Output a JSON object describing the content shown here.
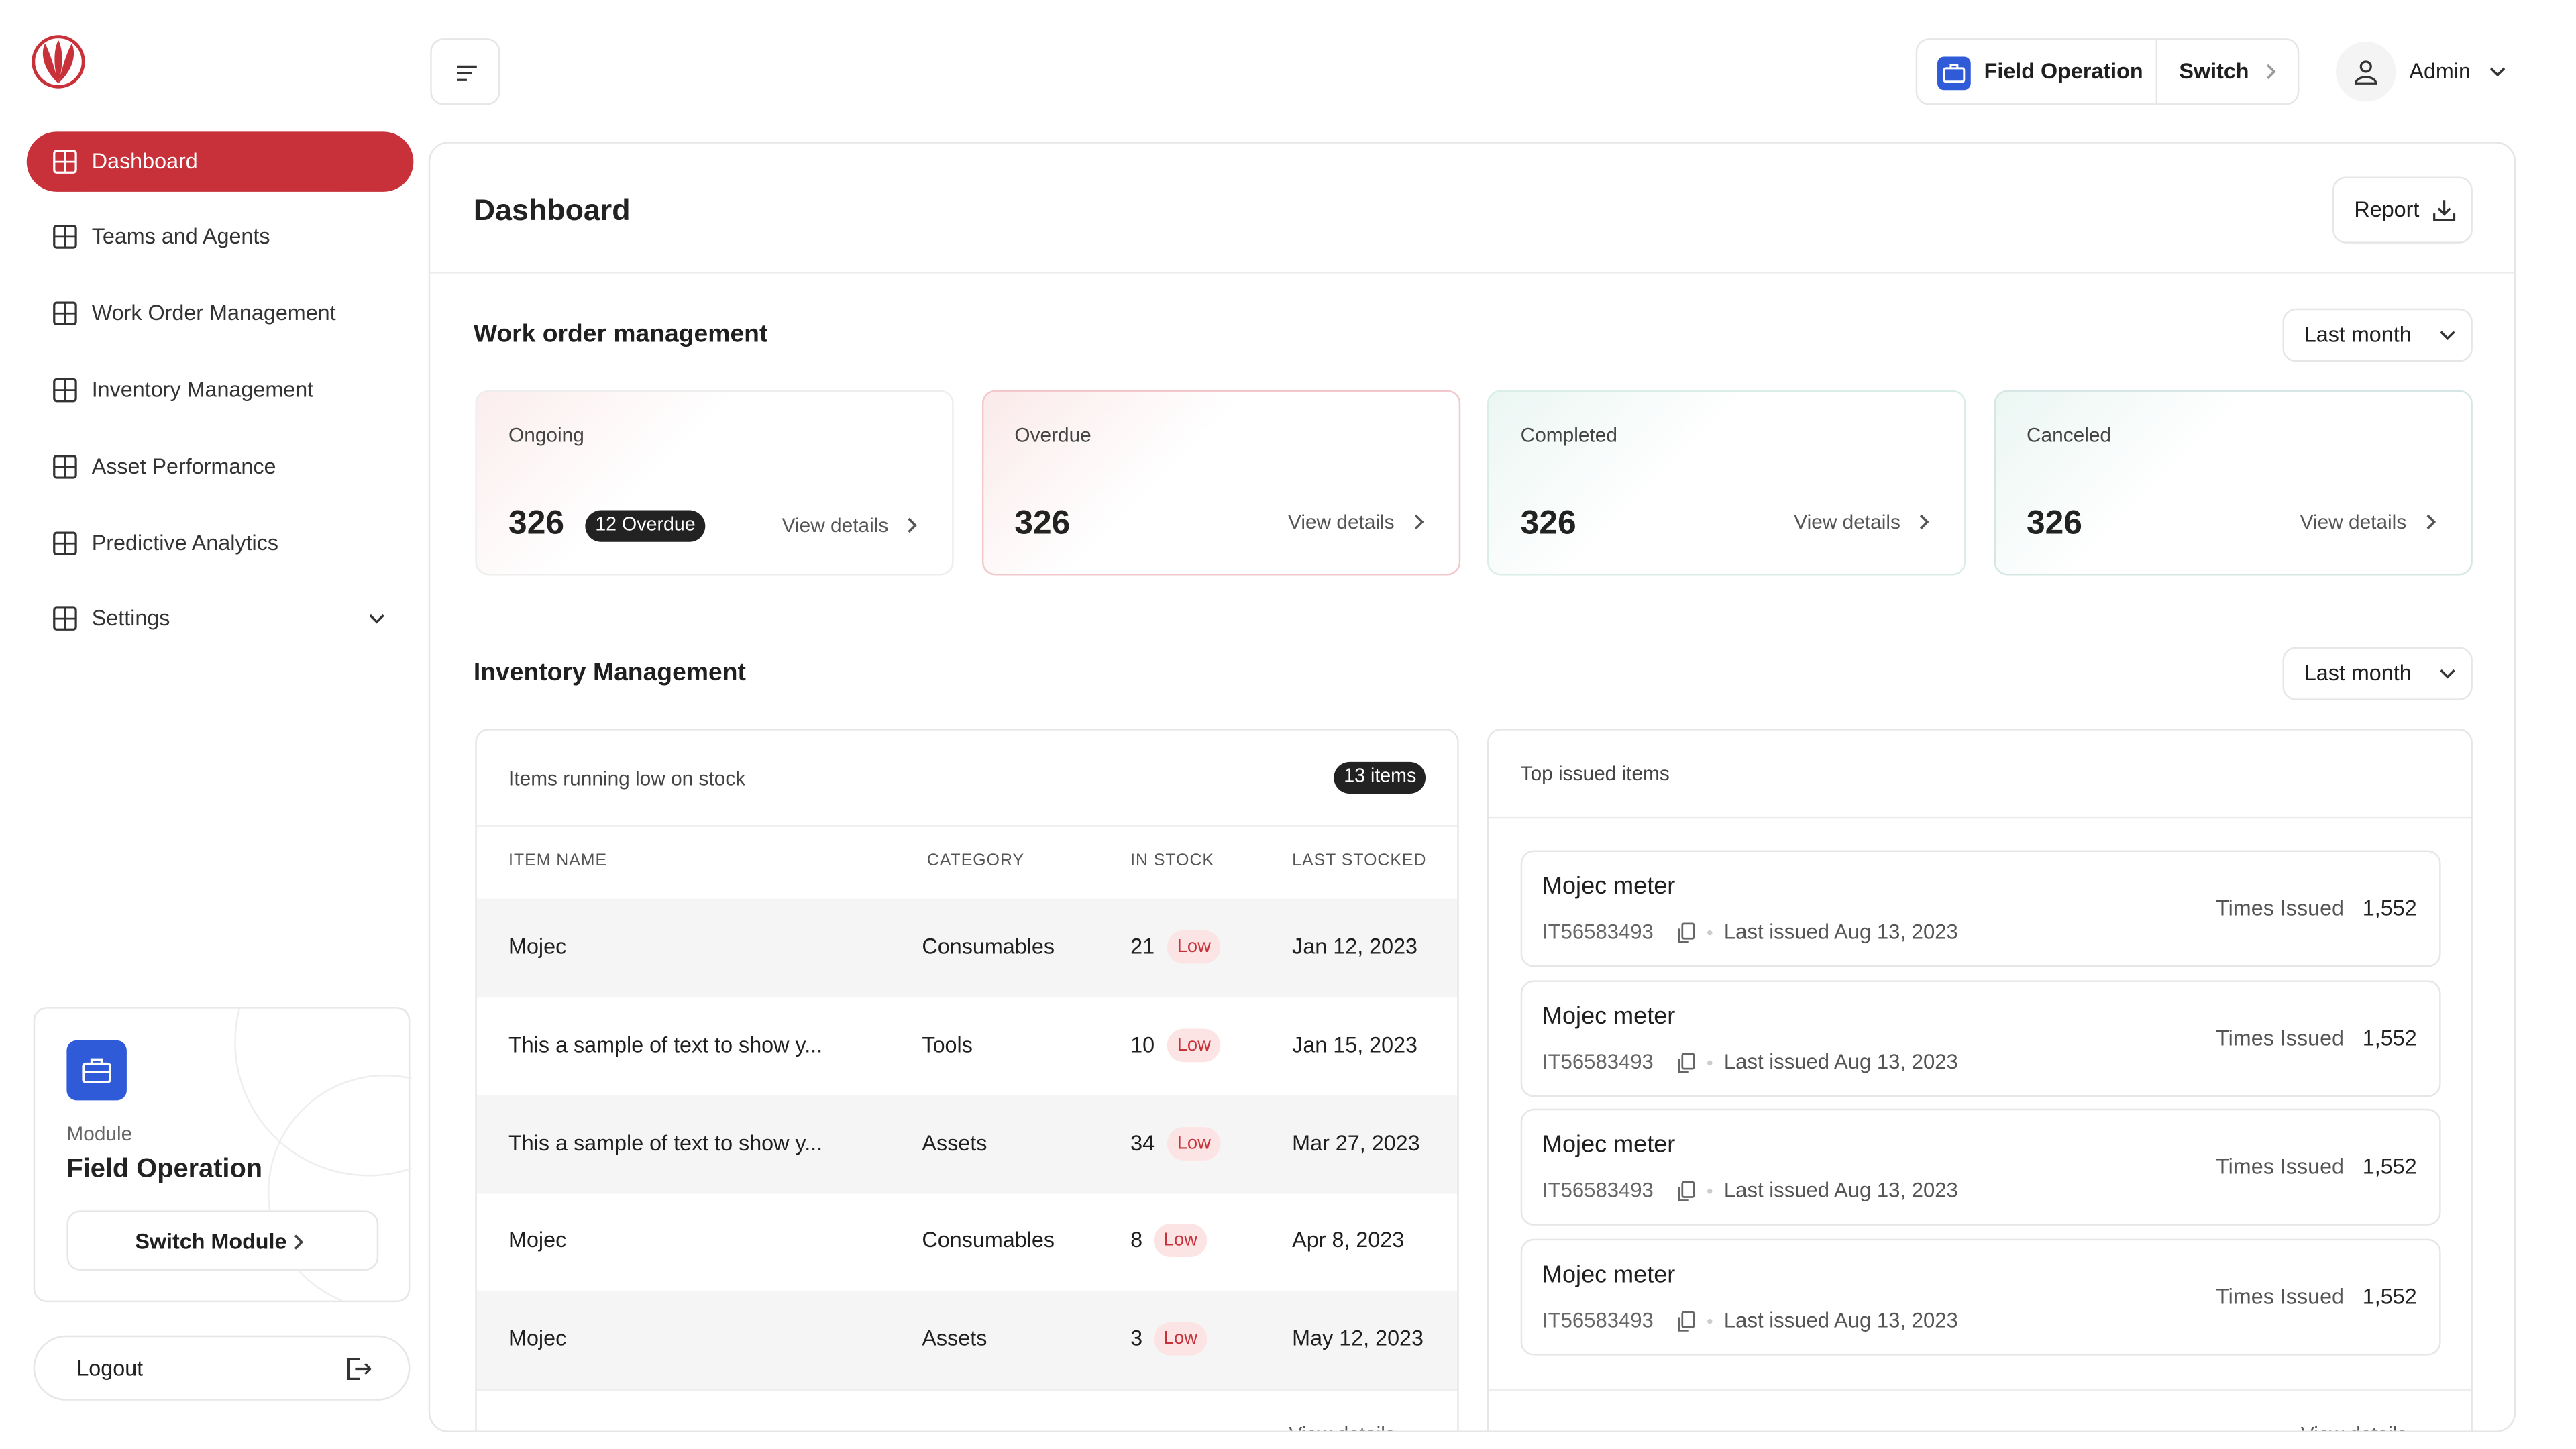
{
  "sidebar": {
    "nav": [
      "Dashboard",
      "Teams and Agents",
      "Work Order Management",
      "Inventory Management",
      "Asset Performance",
      "Predictive Analytics",
      "Settings"
    ],
    "module": {
      "label": "Module",
      "name": "Field Operation",
      "button": "Switch Module"
    },
    "logout": "Logout"
  },
  "header": {
    "module": "Field Operation",
    "switch": "Switch",
    "user": "Admin"
  },
  "page": {
    "title": "Dashboard",
    "report": "Report"
  },
  "work_orders": {
    "title": "Work order management",
    "period": "Last month",
    "cards": [
      {
        "label": "Ongoing",
        "value": "326",
        "badge": "12 Overdue",
        "link": "View details"
      },
      {
        "label": "Overdue",
        "value": "326",
        "link": "View details"
      },
      {
        "label": "Completed",
        "value": "326",
        "link": "View details"
      },
      {
        "label": "Canceled",
        "value": "326",
        "link": "View details"
      }
    ]
  },
  "inventory": {
    "title": "Inventory Management",
    "period": "Last month",
    "low_stock": {
      "title": "Items running low on stock",
      "badge": "13 items",
      "columns": [
        "ITEM NAME",
        "CATEGORY",
        "IN STOCK",
        "LAST STOCKED"
      ],
      "rows": [
        {
          "name": "Mojec",
          "category": "Consumables",
          "stock": "21",
          "status": "Low",
          "last": "Jan 12, 2023"
        },
        {
          "name": "This a sample of text to show y...",
          "category": "Tools",
          "stock": "10",
          "status": "Low",
          "last": "Jan 15, 2023"
        },
        {
          "name": "This a sample of text to show y...",
          "category": "Assets",
          "stock": "34",
          "status": "Low",
          "last": "Mar 27, 2023"
        },
        {
          "name": "Mojec",
          "category": "Consumables",
          "stock": "8",
          "status": "Low",
          "last": "Apr 8, 2023"
        },
        {
          "name": "Mojec",
          "category": "Assets",
          "stock": "3",
          "status": "Low",
          "last": "May 12, 2023"
        }
      ],
      "link": "View details"
    },
    "top_issued": {
      "title": "Top issued items",
      "items": [
        {
          "name": "Mojec meter",
          "id": "IT56583493",
          "last": "Last issued Aug 13, 2023",
          "metric_label": "Times Issued",
          "metric": "1,552"
        },
        {
          "name": "Mojec meter",
          "id": "IT56583493",
          "last": "Last issued Aug 13, 2023",
          "metric_label": "Times Issued",
          "metric": "1,552"
        },
        {
          "name": "Mojec meter",
          "id": "IT56583493",
          "last": "Last issued Aug 13, 2023",
          "metric_label": "Times Issued",
          "metric": "1,552"
        },
        {
          "name": "Mojec meter",
          "id": "IT56583493",
          "last": "Last issued Aug 13, 2023",
          "metric_label": "Times Issued",
          "metric": "1,552"
        }
      ],
      "link": "View details"
    }
  }
}
